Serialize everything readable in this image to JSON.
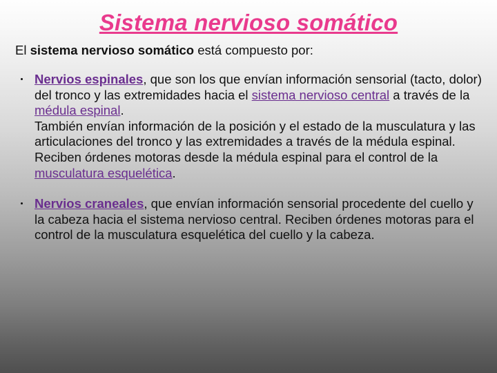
{
  "title": "Sistema nervioso somático",
  "title_color": "#e93a8d",
  "title_fontsize": 33,
  "body_fontsize": 18.5,
  "link_color": "#6a2e8f",
  "text_color": "#111111",
  "gradient_stops": [
    "#fefefe",
    "#f7f7f7",
    "#ececec",
    "#d8d8d8",
    "#bcbcbc",
    "#9d9d9d",
    "#7e7e7e",
    "#626262",
    "#4f4f4f"
  ],
  "intro": {
    "prefix": "El ",
    "bold": "sistema nervioso somático",
    "suffix": " está compuesto por:"
  },
  "items": [
    {
      "lead_link": "Nervios espinales",
      "frag1": ", que son los que envían información sensorial (tacto, dolor) del tronco y las extremidades hacia el ",
      "link2": "sistema nervioso central",
      "frag2": " a través de la ",
      "link3": "médula espinal",
      "frag3": ".",
      "para2a": "También envían información de la posición y el estado de la musculatura y las articulaciones del tronco y las extremidades a través de la médula espinal. Reciben órdenes motoras desde la médula espinal para el control de la ",
      "link4": "musculatura esquelética",
      "para2b": "."
    },
    {
      "lead_link": "Nervios craneales",
      "frag1": ", que envían información sensorial procedente del cuello y la cabeza hacia el sistema nervioso central. Reciben órdenes motoras para el control de la musculatura esquelética del cuello y la cabeza."
    }
  ]
}
